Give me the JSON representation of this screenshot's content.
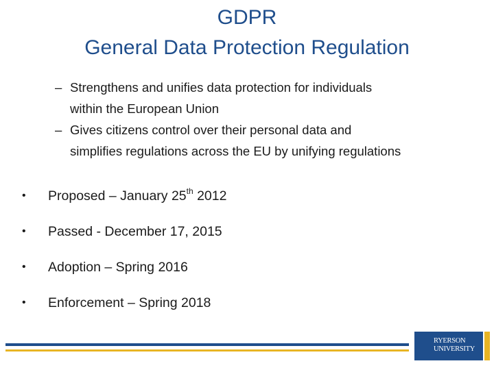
{
  "title": {
    "line1": "GDPR",
    "line2": "General Data Protection Regulation"
  },
  "sub_bullets": [
    {
      "dash": "–",
      "line1": "Strengthens and unifies data protection for individuals",
      "line2": "within the European Union"
    },
    {
      "dash": "–",
      "line1": "Gives citizens control over their personal data and",
      "line2": "simplifies regulations across the EU by unifying regulations"
    }
  ],
  "bullets": [
    {
      "bullet": "•",
      "text": "Proposed – January 25",
      "sup": "th",
      "suffix": " 2012"
    },
    {
      "bullet": "•",
      "text": "Passed - December 17, 2015"
    },
    {
      "bullet": "•",
      "text": "Adoption – Spring 2016"
    },
    {
      "bullet": "•",
      "text": "Enforcement – Spring 2018"
    }
  ],
  "footer": {
    "logo_line1": "RYERSON",
    "logo_line2": "UNIVERSITY",
    "colors": {
      "blue": "#1f4e8c",
      "gold": "#e8b423"
    }
  }
}
